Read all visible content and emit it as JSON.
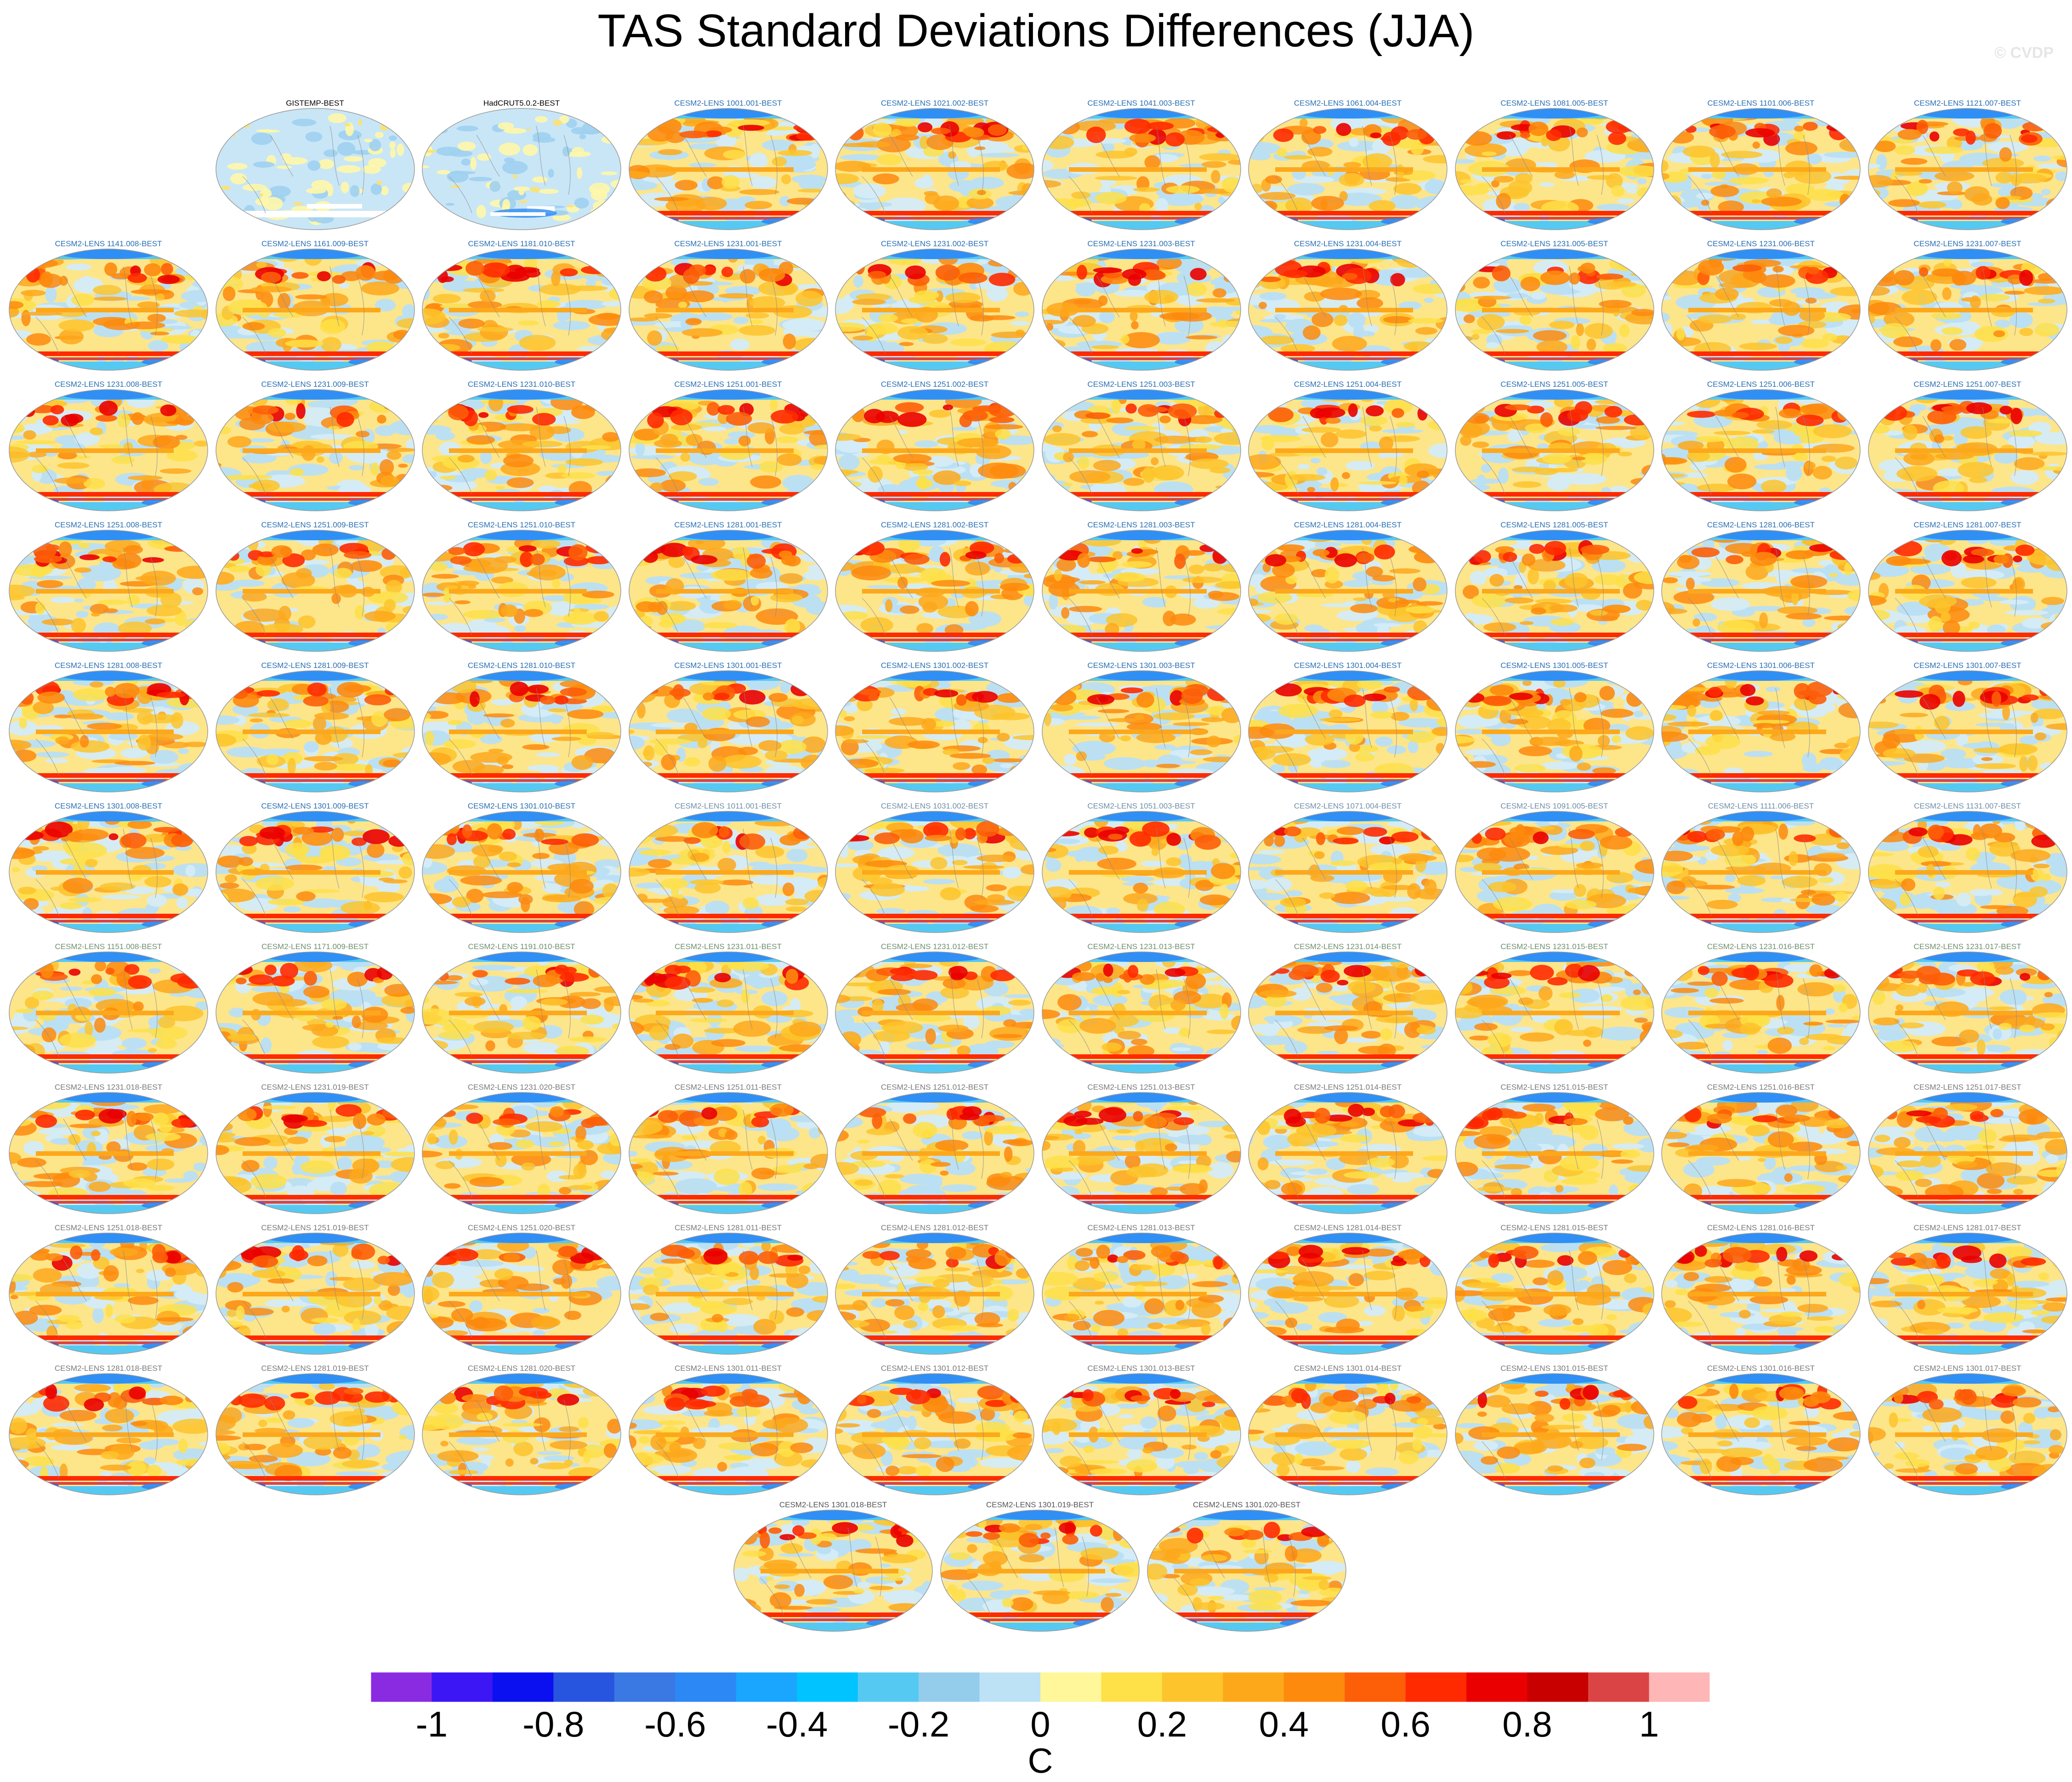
{
  "title": "TAS Standard Deviations Differences (JJA)",
  "watermark": "© CVDP",
  "chart_data": {
    "type": "heatmap",
    "title": "TAS Standard Deviations Differences (JJA)",
    "projection": "global map panels",
    "colorbar": {
      "units": "C",
      "tick_labels": [
        "-1",
        "-0.8",
        "-0.6",
        "-0.4",
        "-0.2",
        "0",
        "0.2",
        "0.4",
        "0.6",
        "0.8",
        "1"
      ],
      "ticks": [
        -1,
        -0.8,
        -0.6,
        -0.4,
        -0.2,
        0,
        0.2,
        0.4,
        0.6,
        0.8,
        1
      ],
      "levels": [
        -1.1,
        -1.0,
        -0.9,
        -0.8,
        -0.7,
        -0.6,
        -0.5,
        -0.4,
        -0.3,
        -0.2,
        -0.1,
        0,
        0.1,
        0.2,
        0.3,
        0.4,
        0.5,
        0.6,
        0.7,
        0.8,
        0.9,
        1.0,
        1.1
      ],
      "colors": [
        "#8a2be2",
        "#3c16f5",
        "#0a10f0",
        "#2855e0",
        "#3a78e3",
        "#2c88f5",
        "#1aa6ff",
        "#00c3ff",
        "#56c9f2",
        "#94ccec",
        "#bde2f6",
        "#fff799",
        "#fee048",
        "#fdc42c",
        "#fda81b",
        "#fd8a0d",
        "#fd5e08",
        "#ff2a00",
        "#ea0000",
        "#c80000",
        "#db4444",
        "#ffb6b6"
      ]
    },
    "panel_color_classes": {
      "reference": "observational minus observational difference (mostly near-zero, light blue/white)",
      "model_primary": "model minus observations (mostly positive, yellow/orange/red)"
    },
    "panels": [
      {
        "label": "GISTEMP-BEST",
        "title_color": "#000000",
        "kind": "obs"
      },
      {
        "label": "HadCRUT5.0.2-BEST",
        "title_color": "#000000",
        "kind": "obs"
      },
      {
        "label": "CESM2-LENS 1001.001-BEST",
        "title_color": "#2a6fb3",
        "kind": "model"
      },
      {
        "label": "CESM2-LENS 1021.002-BEST",
        "title_color": "#2a6fb3",
        "kind": "model"
      },
      {
        "label": "CESM2-LENS 1041.003-BEST",
        "title_color": "#2a6fb3",
        "kind": "model"
      },
      {
        "label": "CESM2-LENS 1061.004-BEST",
        "title_color": "#2a6fb3",
        "kind": "model"
      },
      {
        "label": "CESM2-LENS 1081.005-BEST",
        "title_color": "#2a6fb3",
        "kind": "model"
      },
      {
        "label": "CESM2-LENS 1101.006-BEST",
        "title_color": "#2a6fb3",
        "kind": "model"
      },
      {
        "label": "CESM2-LENS 1121.007-BEST",
        "title_color": "#2a6fb3",
        "kind": "model"
      },
      {
        "label": "CESM2-LENS 1141.008-BEST",
        "title_color": "#2a6fb3",
        "kind": "model"
      },
      {
        "label": "CESM2-LENS 1161.009-BEST",
        "title_color": "#2a6fb3",
        "kind": "model"
      },
      {
        "label": "CESM2-LENS 1181.010-BEST",
        "title_color": "#2a6fb3",
        "kind": "model"
      },
      {
        "label": "CESM2-LENS 1231.001-BEST",
        "title_color": "#2a6fb3",
        "kind": "model"
      },
      {
        "label": "CESM2-LENS 1231.002-BEST",
        "title_color": "#2a6fb3",
        "kind": "model"
      },
      {
        "label": "CESM2-LENS 1231.003-BEST",
        "title_color": "#2a6fb3",
        "kind": "model"
      },
      {
        "label": "CESM2-LENS 1231.004-BEST",
        "title_color": "#2a6fb3",
        "kind": "model"
      },
      {
        "label": "CESM2-LENS 1231.005-BEST",
        "title_color": "#2a6fb3",
        "kind": "model"
      },
      {
        "label": "CESM2-LENS 1231.006-BEST",
        "title_color": "#2a6fb3",
        "kind": "model"
      },
      {
        "label": "CESM2-LENS 1231.007-BEST",
        "title_color": "#2a6fb3",
        "kind": "model"
      },
      {
        "label": "CESM2-LENS 1231.008-BEST",
        "title_color": "#2a6fb3",
        "kind": "model"
      },
      {
        "label": "CESM2-LENS 1231.009-BEST",
        "title_color": "#2a6fb3",
        "kind": "model"
      },
      {
        "label": "CESM2-LENS 1231.010-BEST",
        "title_color": "#2a6fb3",
        "kind": "model"
      },
      {
        "label": "CESM2-LENS 1251.001-BEST",
        "title_color": "#2a6fb3",
        "kind": "model"
      },
      {
        "label": "CESM2-LENS 1251.002-BEST",
        "title_color": "#2a6fb3",
        "kind": "model"
      },
      {
        "label": "CESM2-LENS 1251.003-BEST",
        "title_color": "#2a6fb3",
        "kind": "model"
      },
      {
        "label": "CESM2-LENS 1251.004-BEST",
        "title_color": "#2a6fb3",
        "kind": "model"
      },
      {
        "label": "CESM2-LENS 1251.005-BEST",
        "title_color": "#2a6fb3",
        "kind": "model"
      },
      {
        "label": "CESM2-LENS 1251.006-BEST",
        "title_color": "#2a6fb3",
        "kind": "model"
      },
      {
        "label": "CESM2-LENS 1251.007-BEST",
        "title_color": "#2a6fb3",
        "kind": "model"
      },
      {
        "label": "CESM2-LENS 1251.008-BEST",
        "title_color": "#2a6fb3",
        "kind": "model"
      },
      {
        "label": "CESM2-LENS 1251.009-BEST",
        "title_color": "#2a6fb3",
        "kind": "model"
      },
      {
        "label": "CESM2-LENS 1251.010-BEST",
        "title_color": "#2a6fb3",
        "kind": "model"
      },
      {
        "label": "CESM2-LENS 1281.001-BEST",
        "title_color": "#2a6fb3",
        "kind": "model"
      },
      {
        "label": "CESM2-LENS 1281.002-BEST",
        "title_color": "#2a6fb3",
        "kind": "model"
      },
      {
        "label": "CESM2-LENS 1281.003-BEST",
        "title_color": "#2a6fb3",
        "kind": "model"
      },
      {
        "label": "CESM2-LENS 1281.004-BEST",
        "title_color": "#2a6fb3",
        "kind": "model"
      },
      {
        "label": "CESM2-LENS 1281.005-BEST",
        "title_color": "#2a6fb3",
        "kind": "model"
      },
      {
        "label": "CESM2-LENS 1281.006-BEST",
        "title_color": "#2a6fb3",
        "kind": "model"
      },
      {
        "label": "CESM2-LENS 1281.007-BEST",
        "title_color": "#2a6fb3",
        "kind": "model"
      },
      {
        "label": "CESM2-LENS 1281.008-BEST",
        "title_color": "#2a6fb3",
        "kind": "model"
      },
      {
        "label": "CESM2-LENS 1281.009-BEST",
        "title_color": "#2a6fb3",
        "kind": "model"
      },
      {
        "label": "CESM2-LENS 1281.010-BEST",
        "title_color": "#2a6fb3",
        "kind": "model"
      },
      {
        "label": "CESM2-LENS 1301.001-BEST",
        "title_color": "#2a6fb3",
        "kind": "model"
      },
      {
        "label": "CESM2-LENS 1301.002-BEST",
        "title_color": "#2a6fb3",
        "kind": "model"
      },
      {
        "label": "CESM2-LENS 1301.003-BEST",
        "title_color": "#2a6fb3",
        "kind": "model"
      },
      {
        "label": "CESM2-LENS 1301.004-BEST",
        "title_color": "#2a6fb3",
        "kind": "model"
      },
      {
        "label": "CESM2-LENS 1301.005-BEST",
        "title_color": "#2a6fb3",
        "kind": "model"
      },
      {
        "label": "CESM2-LENS 1301.006-BEST",
        "title_color": "#2a6fb3",
        "kind": "model"
      },
      {
        "label": "CESM2-LENS 1301.007-BEST",
        "title_color": "#2a6fb3",
        "kind": "model"
      },
      {
        "label": "CESM2-LENS 1301.008-BEST",
        "title_color": "#2a6fb3",
        "kind": "model"
      },
      {
        "label": "CESM2-LENS 1301.009-BEST",
        "title_color": "#2a6fb3",
        "kind": "model"
      },
      {
        "label": "CESM2-LENS 1301.010-BEST",
        "title_color": "#2a6fb3",
        "kind": "model"
      },
      {
        "label": "CESM2-LENS 1011.001-BEST",
        "title_color": "#6e8ea8",
        "kind": "model"
      },
      {
        "label": "CESM2-LENS 1031.002-BEST",
        "title_color": "#6e8ea8",
        "kind": "model"
      },
      {
        "label": "CESM2-LENS 1051.003-BEST",
        "title_color": "#6e8ea8",
        "kind": "model"
      },
      {
        "label": "CESM2-LENS 1071.004-BEST",
        "title_color": "#6e8ea8",
        "kind": "model"
      },
      {
        "label": "CESM2-LENS 1091.005-BEST",
        "title_color": "#6e8ea8",
        "kind": "model"
      },
      {
        "label": "CESM2-LENS 1111.006-BEST",
        "title_color": "#6e8ea8",
        "kind": "model"
      },
      {
        "label": "CESM2-LENS 1131.007-BEST",
        "title_color": "#6e8ea8",
        "kind": "model"
      },
      {
        "label": "CESM2-LENS 1151.008-BEST",
        "title_color": "#6f8f6f",
        "kind": "model"
      },
      {
        "label": "CESM2-LENS 1171.009-BEST",
        "title_color": "#6f8f6f",
        "kind": "model"
      },
      {
        "label": "CESM2-LENS 1191.010-BEST",
        "title_color": "#6f8f6f",
        "kind": "model"
      },
      {
        "label": "CESM2-LENS 1231.011-BEST",
        "title_color": "#6f8f6f",
        "kind": "model"
      },
      {
        "label": "CESM2-LENS 1231.012-BEST",
        "title_color": "#6f8f6f",
        "kind": "model"
      },
      {
        "label": "CESM2-LENS 1231.013-BEST",
        "title_color": "#6f8f6f",
        "kind": "model"
      },
      {
        "label": "CESM2-LENS 1231.014-BEST",
        "title_color": "#6f8f6f",
        "kind": "model"
      },
      {
        "label": "CESM2-LENS 1231.015-BEST",
        "title_color": "#6f8f6f",
        "kind": "model"
      },
      {
        "label": "CESM2-LENS 1231.016-BEST",
        "title_color": "#6f8f6f",
        "kind": "model"
      },
      {
        "label": "CESM2-LENS 1231.017-BEST",
        "title_color": "#6f8f6f",
        "kind": "model"
      },
      {
        "label": "CESM2-LENS 1231.018-BEST",
        "title_color": "#7a7a7a",
        "kind": "model"
      },
      {
        "label": "CESM2-LENS 1231.019-BEST",
        "title_color": "#7a7a7a",
        "kind": "model"
      },
      {
        "label": "CESM2-LENS 1231.020-BEST",
        "title_color": "#7a7a7a",
        "kind": "model"
      },
      {
        "label": "CESM2-LENS 1251.011-BEST",
        "title_color": "#7a7a7a",
        "kind": "model"
      },
      {
        "label": "CESM2-LENS 1251.012-BEST",
        "title_color": "#7a7a7a",
        "kind": "model"
      },
      {
        "label": "CESM2-LENS 1251.013-BEST",
        "title_color": "#7a7a7a",
        "kind": "model"
      },
      {
        "label": "CESM2-LENS 1251.014-BEST",
        "title_color": "#7a7a7a",
        "kind": "model"
      },
      {
        "label": "CESM2-LENS 1251.015-BEST",
        "title_color": "#7a7a7a",
        "kind": "model"
      },
      {
        "label": "CESM2-LENS 1251.016-BEST",
        "title_color": "#7a7a7a",
        "kind": "model"
      },
      {
        "label": "CESM2-LENS 1251.017-BEST",
        "title_color": "#7a7a7a",
        "kind": "model"
      },
      {
        "label": "CESM2-LENS 1251.018-BEST",
        "title_color": "#7a7a7a",
        "kind": "model"
      },
      {
        "label": "CESM2-LENS 1251.019-BEST",
        "title_color": "#7a7a7a",
        "kind": "model"
      },
      {
        "label": "CESM2-LENS 1251.020-BEST",
        "title_color": "#7a7a7a",
        "kind": "model"
      },
      {
        "label": "CESM2-LENS 1281.011-BEST",
        "title_color": "#7a7a7a",
        "kind": "model"
      },
      {
        "label": "CESM2-LENS 1281.012-BEST",
        "title_color": "#7a7a7a",
        "kind": "model"
      },
      {
        "label": "CESM2-LENS 1281.013-BEST",
        "title_color": "#7a7a7a",
        "kind": "model"
      },
      {
        "label": "CESM2-LENS 1281.014-BEST",
        "title_color": "#7a7a7a",
        "kind": "model"
      },
      {
        "label": "CESM2-LENS 1281.015-BEST",
        "title_color": "#7a7a7a",
        "kind": "model"
      },
      {
        "label": "CESM2-LENS 1281.016-BEST",
        "title_color": "#7a7a7a",
        "kind": "model"
      },
      {
        "label": "CESM2-LENS 1281.017-BEST",
        "title_color": "#7a7a7a",
        "kind": "model"
      },
      {
        "label": "CESM2-LENS 1281.018-BEST",
        "title_color": "#7a7a7a",
        "kind": "model"
      },
      {
        "label": "CESM2-LENS 1281.019-BEST",
        "title_color": "#7a7a7a",
        "kind": "model"
      },
      {
        "label": "CESM2-LENS 1281.020-BEST",
        "title_color": "#7a7a7a",
        "kind": "model"
      },
      {
        "label": "CESM2-LENS 1301.011-BEST",
        "title_color": "#7a7a7a",
        "kind": "model"
      },
      {
        "label": "CESM2-LENS 1301.012-BEST",
        "title_color": "#7a7a7a",
        "kind": "model"
      },
      {
        "label": "CESM2-LENS 1301.013-BEST",
        "title_color": "#7a7a7a",
        "kind": "model"
      },
      {
        "label": "CESM2-LENS 1301.014-BEST",
        "title_color": "#7a7a7a",
        "kind": "model"
      },
      {
        "label": "CESM2-LENS 1301.015-BEST",
        "title_color": "#7a7a7a",
        "kind": "model"
      },
      {
        "label": "CESM2-LENS 1301.016-BEST",
        "title_color": "#7a7a7a",
        "kind": "model"
      },
      {
        "label": "CESM2-LENS 1301.017-BEST",
        "title_color": "#7a7a7a",
        "kind": "model"
      },
      {
        "label": "CESM2-LENS 1301.018-BEST",
        "title_color": "#555555",
        "kind": "model"
      },
      {
        "label": "CESM2-LENS 1301.019-BEST",
        "title_color": "#555555",
        "kind": "model"
      },
      {
        "label": "CESM2-LENS 1301.020-BEST",
        "title_color": "#555555",
        "kind": "model"
      }
    ]
  }
}
